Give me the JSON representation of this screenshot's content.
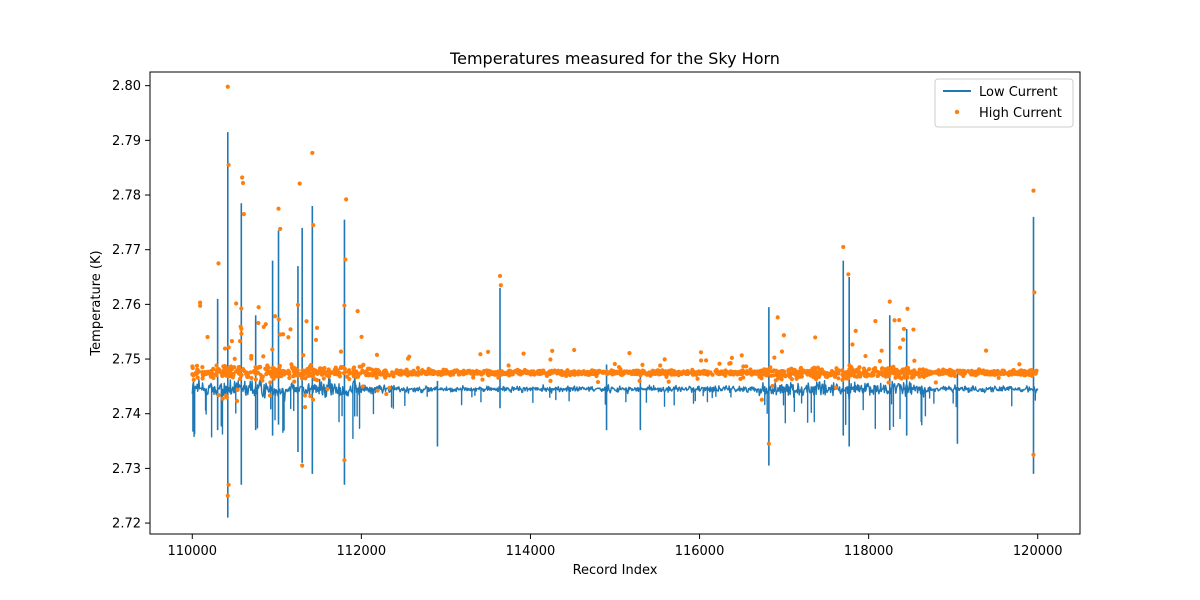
{
  "chart_data": {
    "type": "line",
    "title": "Temperatures measured for the Sky Horn",
    "xlabel": "Record Index",
    "ylabel": "Temperature (K)",
    "xlim": [
      109500,
      120500
    ],
    "ylim": [
      2.718,
      2.8025
    ],
    "xticks": [
      110000,
      112000,
      114000,
      116000,
      118000,
      120000
    ],
    "yticks": [
      2.72,
      2.73,
      2.74,
      2.75,
      2.76,
      2.77,
      2.78,
      2.79,
      2.8
    ],
    "xtick_labels": [
      "110000",
      "112000",
      "114000",
      "116000",
      "118000",
      "120000"
    ],
    "ytick_labels": [
      "2.72",
      "2.73",
      "2.74",
      "2.75",
      "2.76",
      "2.77",
      "2.78",
      "2.79",
      "2.80"
    ],
    "legend": {
      "placement": "top-right",
      "entries": [
        "Low Current",
        "High Current"
      ]
    },
    "series": [
      {
        "name": "Low Current",
        "kind": "line",
        "color": "#1f77b4",
        "x_range": [
          110000,
          120000
        ],
        "baseline": 2.7445,
        "noise": 0.0012,
        "spikes": [
          {
            "x": 110300,
            "high": 2.761,
            "low": 2.737
          },
          {
            "x": 110420,
            "high": 2.7915,
            "low": 2.721
          },
          {
            "x": 110580,
            "high": 2.7785,
            "low": 2.727
          },
          {
            "x": 110750,
            "high": 2.758,
            "low": 2.737
          },
          {
            "x": 110950,
            "high": 2.768,
            "low": 2.736
          },
          {
            "x": 111020,
            "high": 2.7735,
            "low": 2.738
          },
          {
            "x": 111250,
            "high": 2.767,
            "low": 2.733
          },
          {
            "x": 111300,
            "high": 2.774,
            "low": 2.731
          },
          {
            "x": 111420,
            "high": 2.778,
            "low": 2.729
          },
          {
            "x": 111800,
            "high": 2.7755,
            "low": 2.727
          },
          {
            "x": 112900,
            "high": 2.746,
            "low": 2.734
          },
          {
            "x": 113640,
            "high": 2.763,
            "low": 2.741
          },
          {
            "x": 114900,
            "high": 2.749,
            "low": 2.737
          },
          {
            "x": 115300,
            "high": 2.748,
            "low": 2.737
          },
          {
            "x": 116820,
            "high": 2.7595,
            "low": 2.7305
          },
          {
            "x": 117700,
            "high": 2.768,
            "low": 2.736
          },
          {
            "x": 117770,
            "high": 2.765,
            "low": 2.734
          },
          {
            "x": 118250,
            "high": 2.758,
            "low": 2.737
          },
          {
            "x": 118450,
            "high": 2.7555,
            "low": 2.736
          },
          {
            "x": 119050,
            "high": 2.748,
            "low": 2.7345
          },
          {
            "x": 119950,
            "high": 2.776,
            "low": 2.729
          }
        ]
      },
      {
        "name": "High Current",
        "kind": "scatter",
        "color": "#ff7f0e",
        "x_range": [
          110000,
          120000
        ],
        "baseline": 2.7475,
        "noise": 0.001,
        "highlights": [
          {
            "x": 110420,
            "y": 2.7998
          },
          {
            "x": 110430,
            "y": 2.7855
          },
          {
            "x": 110590,
            "y": 2.7832
          },
          {
            "x": 110600,
            "y": 2.7822
          },
          {
            "x": 110610,
            "y": 2.7765
          },
          {
            "x": 111020,
            "y": 2.7775
          },
          {
            "x": 111040,
            "y": 2.7738
          },
          {
            "x": 111270,
            "y": 2.7821
          },
          {
            "x": 111420,
            "y": 2.7877
          },
          {
            "x": 111430,
            "y": 2.7745
          },
          {
            "x": 111820,
            "y": 2.7792
          },
          {
            "x": 111810,
            "y": 2.7682
          },
          {
            "x": 110310,
            "y": 2.7675
          },
          {
            "x": 113640,
            "y": 2.7652
          },
          {
            "x": 113650,
            "y": 2.7635
          },
          {
            "x": 117700,
            "y": 2.7705
          },
          {
            "x": 117760,
            "y": 2.7655
          },
          {
            "x": 118250,
            "y": 2.7605
          },
          {
            "x": 118460,
            "y": 2.7592
          },
          {
            "x": 119950,
            "y": 2.7808
          },
          {
            "x": 119960,
            "y": 2.7622
          },
          {
            "x": 110420,
            "y": 2.725
          },
          {
            "x": 110430,
            "y": 2.727
          },
          {
            "x": 111300,
            "y": 2.7305
          },
          {
            "x": 111800,
            "y": 2.7315
          },
          {
            "x": 116820,
            "y": 2.7345
          },
          {
            "x": 119950,
            "y": 2.7325
          }
        ]
      }
    ]
  }
}
